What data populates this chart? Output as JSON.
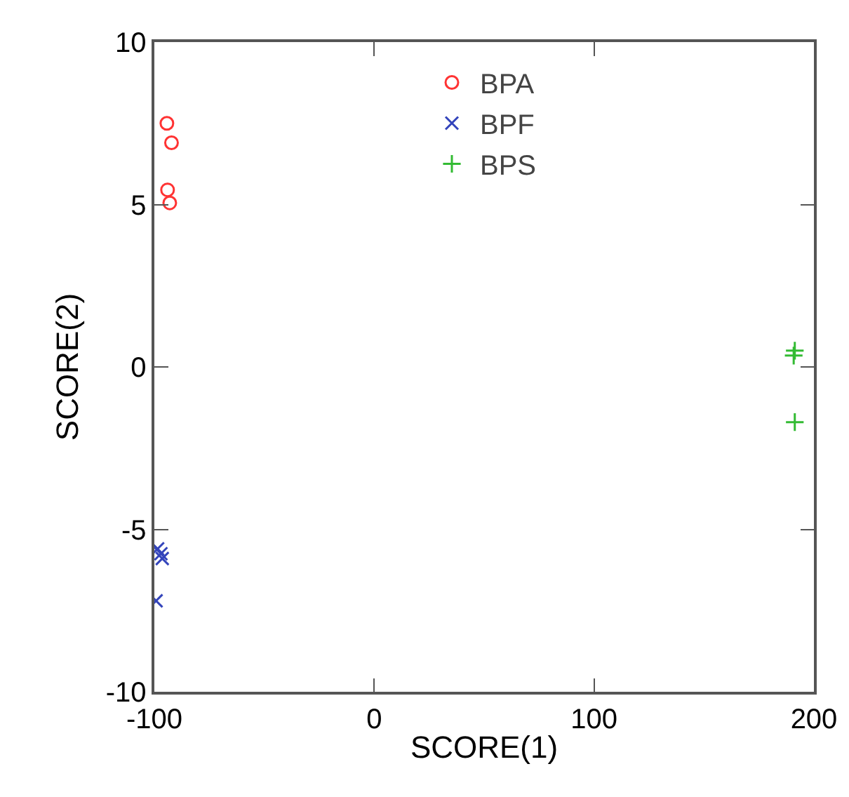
{
  "chart_data": {
    "type": "scatter",
    "xlabel": "SCORE(1)",
    "ylabel": "SCORE(2)",
    "xlim": [
      -100,
      200
    ],
    "ylim": [
      -10,
      10
    ],
    "xticks": [
      -100,
      0,
      100,
      200
    ],
    "yticks": [
      -10,
      -5,
      0,
      5,
      10
    ],
    "grid": false,
    "legend": "top",
    "series": [
      {
        "name": "BPA",
        "color": "#ff3333",
        "marker": "circle",
        "x": [
          -94.3,
          -92.2,
          -94,
          -93
        ],
        "values": [
          7.5,
          6.9,
          5.45,
          5.05
        ]
      },
      {
        "name": "BPF",
        "color": "#3344bb",
        "marker": "cross",
        "x": [
          -98.5,
          -97,
          -96.4,
          -99.2
        ],
        "values": [
          -5.6,
          -5.75,
          -5.9,
          -7.2
        ]
      },
      {
        "name": "BPS",
        "color": "#33bb33",
        "marker": "plus",
        "x": [
          191.3,
          190.8,
          191.3
        ],
        "values": [
          0.5,
          0.35,
          -1.7
        ]
      }
    ]
  }
}
